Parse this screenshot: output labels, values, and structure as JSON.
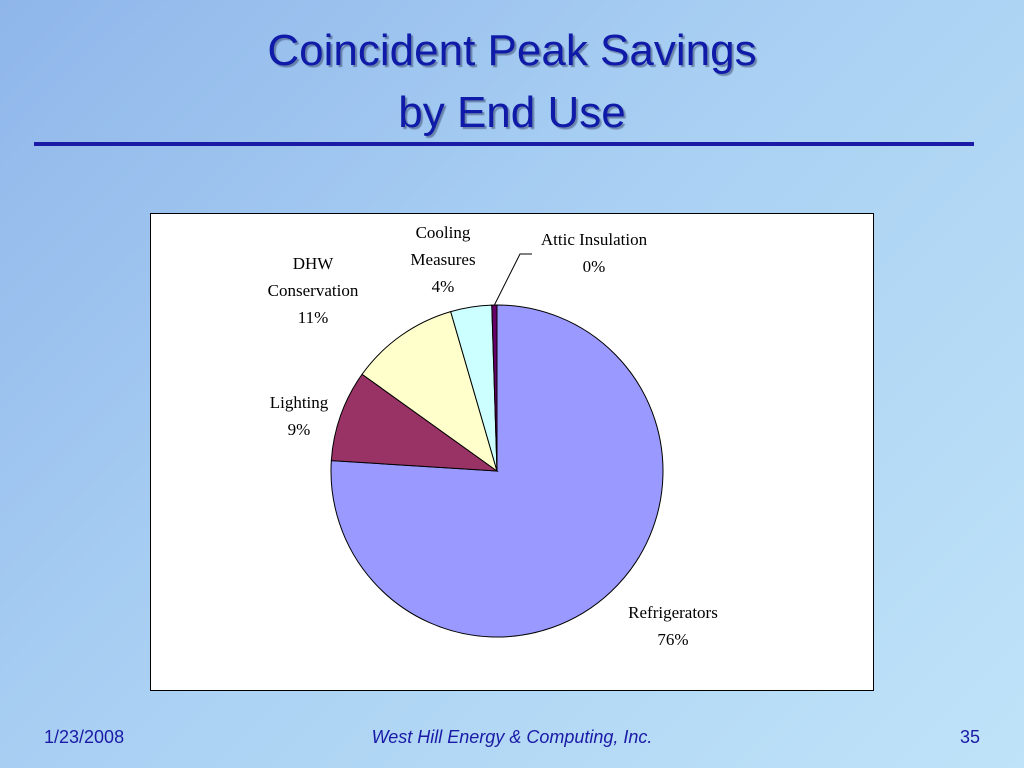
{
  "slide": {
    "title_line1": "Coincident Peak Savings",
    "title_line2": "by End Use",
    "colors": {
      "title": "#0f1aa8",
      "rule": "#1a1aa6",
      "footer": "#1a1aa6"
    }
  },
  "chart_data": {
    "type": "pie",
    "title": "",
    "slices": [
      {
        "label_lines": [
          "Refrigerators"
        ],
        "pct_label": "76%",
        "value": 76.0,
        "color": "#9999ff"
      },
      {
        "label_lines": [
          "Lighting"
        ],
        "pct_label": "9%",
        "value": 8.9,
        "color": "#993366"
      },
      {
        "label_lines": [
          "DHW",
          "Conservation"
        ],
        "pct_label": "11%",
        "value": 10.6,
        "color": "#ffffcc"
      },
      {
        "label_lines": [
          "Cooling",
          "Measures"
        ],
        "pct_label": "4%",
        "value": 4.0,
        "color": "#ccffff"
      },
      {
        "label_lines": [
          "Attic Insulation"
        ],
        "pct_label": "0%",
        "value": 0.5,
        "color": "#660066"
      }
    ]
  },
  "footer": {
    "date": "1/23/2008",
    "company": "West Hill Energy & Computing, Inc.",
    "page": "35"
  }
}
